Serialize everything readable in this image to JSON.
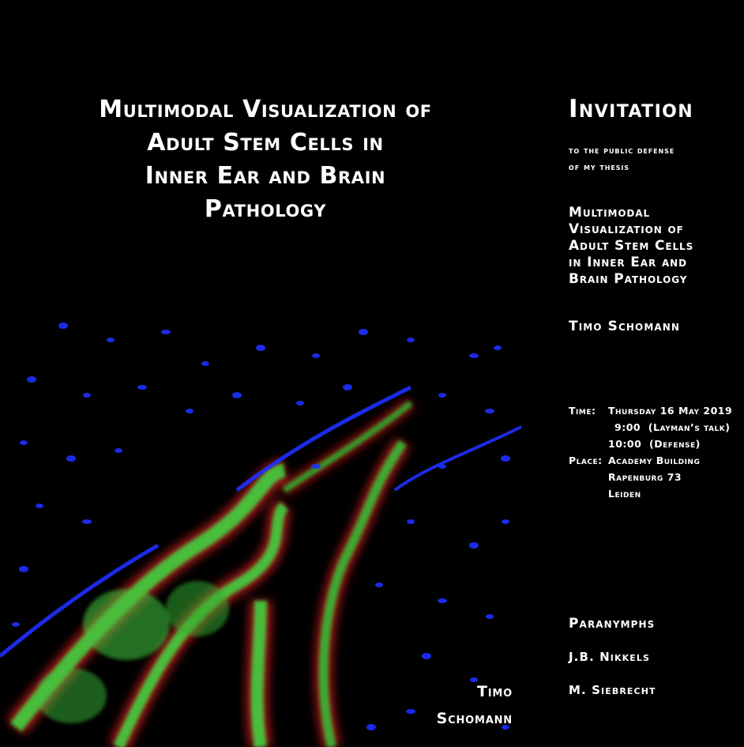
{
  "cover": {
    "title_lines": [
      "Multimodal Visualization of",
      "Adult Stem Cells in",
      "Inner Ear and Brain",
      "Pathology"
    ],
    "author_lines": [
      "Timo",
      "Schomann"
    ]
  },
  "invitation": {
    "heading": "Invitation",
    "subtitle_lines": [
      "to the public defense",
      "of my thesis"
    ],
    "thesis_title_lines": [
      "Multimodal",
      "Visualization of",
      "Adult Stem Cells",
      "in Inner Ear and",
      "Brain Pathology"
    ],
    "author": "Timo Schomann",
    "details": {
      "time_label": "Time:",
      "time_date": "Thursday 16 May 2019",
      "time_slot_1": "9:00  (Layman’s talk)",
      "time_slot_2": "10:00  (Defense)",
      "place_label": "Place:",
      "place_line_1": "Academy Building",
      "place_line_2": "Rapenburg 73",
      "place_line_3": "Leiden"
    },
    "paranymphs_title": "Paranymphs",
    "paranymphs": [
      "J.B. Nikkels",
      "M. Siebrecht"
    ]
  },
  "colors": {
    "background": "#000000",
    "text": "#ffffff",
    "nuclei": "#1a2cff",
    "cells_green": "#4be04b",
    "cells_red": "#e02020"
  }
}
